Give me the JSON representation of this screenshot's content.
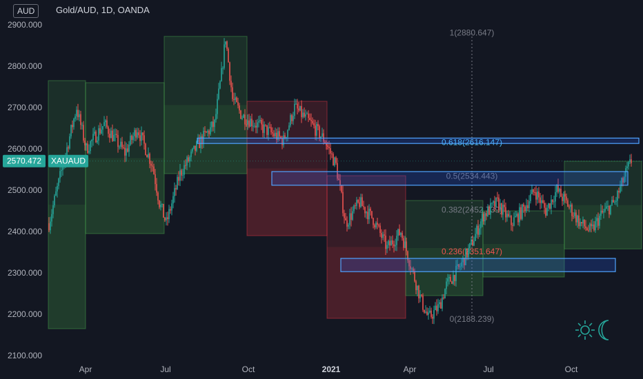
{
  "header": {
    "currency": "AUD",
    "title": "Gold/AUD, 1D, OANDA"
  },
  "price_tag": {
    "value": "2570.472",
    "label": "XAUAUD"
  },
  "colors": {
    "background": "#131722",
    "up": "#26a69a",
    "down": "#ef5350",
    "accent_blue": "#2962ff",
    "fib_text": "#787b86",
    "fib_618": "#4fc3f7",
    "fib_236": "#ef5350",
    "price_tag": "#26a69a"
  },
  "icons": [
    "sun-icon",
    "moon-icon"
  ],
  "chart_data": {
    "type": "candlestick",
    "title": "Gold/AUD, 1D, OANDA",
    "ylim": [
      2100,
      2900
    ],
    "y_ticks": [
      "2100.000",
      "2200.000",
      "2300.000",
      "2400.000",
      "2500.000",
      "2600.000",
      "2700.000",
      "2800.000",
      "2900.000"
    ],
    "x_ticks": [
      "Apr",
      "Jul",
      "Oct",
      "2021",
      "Apr",
      "Jul",
      "Oct"
    ],
    "x_ticks_bold": "2021",
    "last_price": 2570.472,
    "price_path": [
      [
        0,
        2420
      ],
      [
        10,
        2560
      ],
      [
        20,
        2700
      ],
      [
        27,
        2600
      ],
      [
        40,
        2660
      ],
      [
        55,
        2590
      ],
      [
        64,
        2650
      ],
      [
        75,
        2560
      ],
      [
        80,
        2470
      ],
      [
        85,
        2420
      ],
      [
        95,
        2540
      ],
      [
        110,
        2620
      ],
      [
        120,
        2660
      ],
      [
        125,
        2780
      ],
      [
        128,
        2870
      ],
      [
        133,
        2720
      ],
      [
        140,
        2680
      ],
      [
        155,
        2650
      ],
      [
        170,
        2620
      ],
      [
        178,
        2700
      ],
      [
        190,
        2660
      ],
      [
        200,
        2620
      ],
      [
        208,
        2560
      ],
      [
        215,
        2420
      ],
      [
        225,
        2470
      ],
      [
        235,
        2430
      ],
      [
        245,
        2360
      ],
      [
        255,
        2400
      ],
      [
        262,
        2320
      ],
      [
        270,
        2230
      ],
      [
        275,
        2190
      ],
      [
        283,
        2220
      ],
      [
        288,
        2270
      ],
      [
        297,
        2310
      ],
      [
        305,
        2360
      ],
      [
        315,
        2440
      ],
      [
        325,
        2470
      ],
      [
        335,
        2420
      ],
      [
        343,
        2450
      ],
      [
        352,
        2500
      ],
      [
        360,
        2450
      ],
      [
        368,
        2500
      ],
      [
        375,
        2470
      ],
      [
        385,
        2420
      ],
      [
        393,
        2400
      ],
      [
        400,
        2440
      ],
      [
        410,
        2470
      ],
      [
        418,
        2540
      ],
      [
        422,
        2570
      ]
    ],
    "fib_levels": [
      {
        "label": "1(2880.647)",
        "value": 2880.647
      },
      {
        "label": "0.618(2616.147)",
        "value": 2616.147
      },
      {
        "label": "0.5(2534.443)",
        "value": 2534.443
      },
      {
        "label": "0.382(2452.739)",
        "value": 2452.739
      },
      {
        "label": "0.236(2351.647)",
        "value": 2351.647
      },
      {
        "label": "0(2188.239)",
        "value": 2188.239
      }
    ],
    "zones": [
      {
        "color": "green",
        "x0": 0,
        "x1": 27,
        "y0": 2165,
        "y1": 2765
      },
      {
        "color": "green",
        "x0": 27,
        "x1": 84,
        "y0": 2395,
        "y1": 2760
      },
      {
        "color": "green",
        "x0": 84,
        "x1": 144,
        "y0": 2540,
        "y1": 2872
      },
      {
        "color": "red",
        "x0": 144,
        "x1": 202,
        "y0": 2390,
        "y1": 2715
      },
      {
        "color": "red",
        "x0": 202,
        "x1": 259,
        "y0": 2190,
        "y1": 2535
      },
      {
        "color": "green",
        "x0": 259,
        "x1": 315,
        "y0": 2245,
        "y1": 2475
      },
      {
        "color": "green",
        "x0": 315,
        "x1": 374,
        "y0": 2290,
        "y1": 2450
      },
      {
        "color": "green",
        "x0": 374,
        "x1": 430,
        "y0": 2358,
        "y1": 2570
      }
    ],
    "sr_boxes": [
      {
        "x0": 108,
        "x1": 430,
        "y0": 2613,
        "y1": 2626
      },
      {
        "x0": 162,
        "x1": 420,
        "y0": 2512,
        "y1": 2545
      },
      {
        "x0": 212,
        "x1": 411,
        "y0": 2303,
        "y1": 2335
      }
    ]
  }
}
